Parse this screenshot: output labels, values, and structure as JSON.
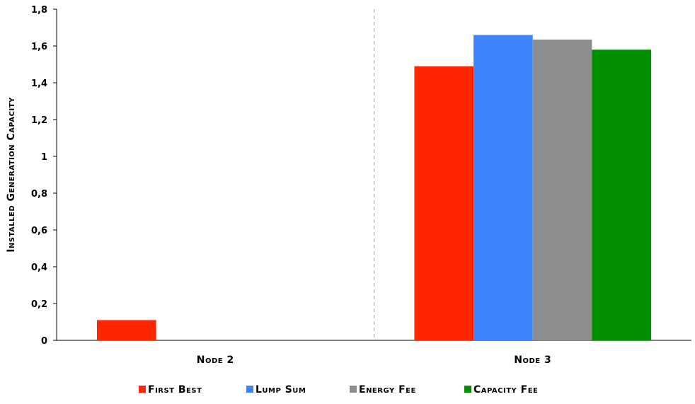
{
  "chart_data": {
    "type": "bar",
    "ylabel": "Installed Generation Capacity",
    "xlabel": "",
    "ylim": [
      0,
      1.8
    ],
    "ytick_labels": [
      "0",
      "0,2",
      "0,4",
      "0,6",
      "0,8",
      "1",
      "1,2",
      "1,4",
      "1,6",
      "1,8"
    ],
    "categories": [
      "Node 2",
      "Node 3"
    ],
    "series": [
      {
        "name": "First Best",
        "color": "#ff2600",
        "values": [
          0.11,
          1.49
        ]
      },
      {
        "name": "Lump Sum",
        "color": "#3f84ff",
        "values": [
          0,
          1.66
        ]
      },
      {
        "name": "Energy Fee",
        "color": "#8e8e8e",
        "values": [
          0,
          1.635
        ]
      },
      {
        "name": "Capacity Fee",
        "color": "#008f00",
        "values": [
          0,
          1.58
        ]
      }
    ],
    "grid": false,
    "category_separator": "dashed",
    "legend_position": "bottom-center"
  }
}
